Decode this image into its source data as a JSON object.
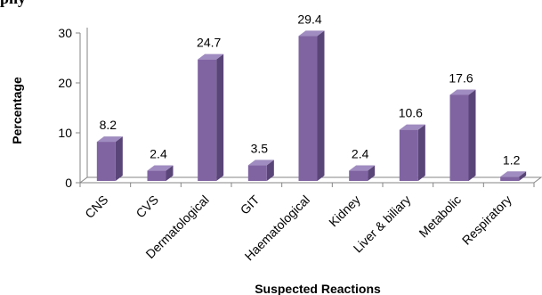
{
  "page": {
    "partial_heading": "phy"
  },
  "chart_data": {
    "type": "bar",
    "title": "",
    "xlabel": "Suspected Reactions",
    "ylabel": "Percentage",
    "ylim": [
      0,
      30
    ],
    "yticks": [
      0,
      10,
      20,
      30
    ],
    "grid": false,
    "style": "3d-column",
    "categories": [
      "CNS",
      "CVS",
      "Dermatological",
      "GIT",
      "Haematological",
      "Kidney",
      "Liver & biliary",
      "Metabolic",
      "Respiratory"
    ],
    "values": [
      8.2,
      2.4,
      24.7,
      3.5,
      29.4,
      2.4,
      10.6,
      17.6,
      1.2
    ],
    "value_labels": [
      "8.2",
      "2.4",
      "24.7",
      "3.5",
      "29.4",
      "2.4",
      "10.6",
      "17.6",
      "1.2"
    ],
    "colors": {
      "bar_front": "#8064a2",
      "bar_side": "#5a4578",
      "bar_top": "#a08cc0",
      "axis": "#868686"
    }
  }
}
